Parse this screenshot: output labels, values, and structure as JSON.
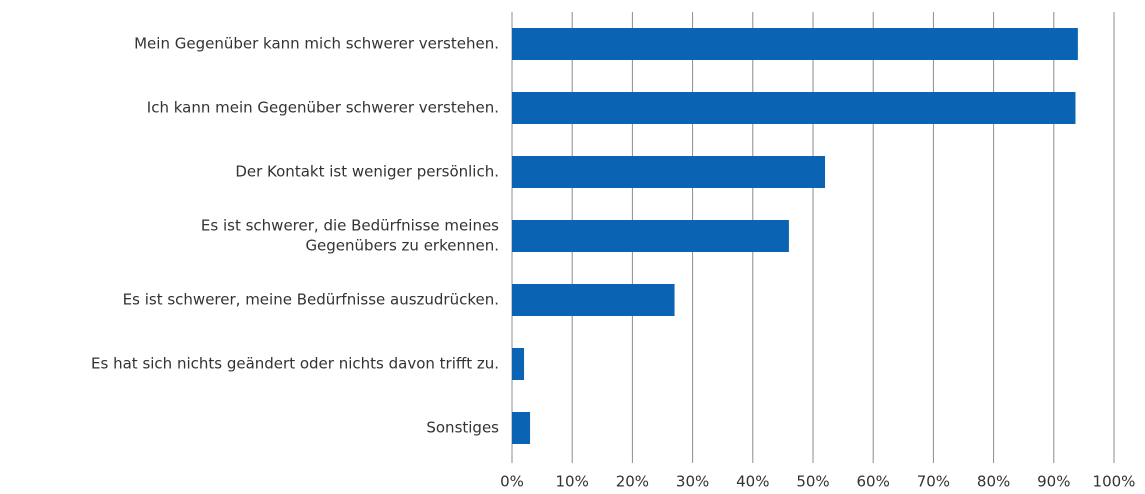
{
  "chart_data": {
    "type": "bar",
    "orientation": "horizontal",
    "categories": [
      "Mein Gegenüber kann mich schwerer verstehen.",
      "Ich kann mein Gegenüber schwerer verstehen.",
      "Der Kontakt ist weniger persönlich.",
      [
        "Es ist schwerer, die Bedürfnisse meines",
        "Gegenübers zu erkennen."
      ],
      "Es ist schwerer, meine Bedürfnisse auszudrücken.",
      "Es hat sich nichts geändert oder nichts davon trifft zu.",
      "Sonstiges"
    ],
    "values": [
      94,
      93.6,
      52,
      46,
      27,
      2,
      3
    ],
    "color": "#0b63b3",
    "xlim": [
      0,
      100
    ],
    "xticks": [
      {
        "value": 0,
        "label": "0%"
      },
      {
        "value": 10,
        "label": "10%"
      },
      {
        "value": 20,
        "label": "20%"
      },
      {
        "value": 30,
        "label": "30%"
      },
      {
        "value": 40,
        "label": "40%"
      },
      {
        "value": 50,
        "label": "50%"
      },
      {
        "value": 60,
        "label": "60%"
      },
      {
        "value": 70,
        "label": "70%"
      },
      {
        "value": 80,
        "label": "80%"
      },
      {
        "value": 90,
        "label": "90%"
      },
      {
        "value": 100,
        "label": "100%"
      }
    ],
    "grid": true
  }
}
